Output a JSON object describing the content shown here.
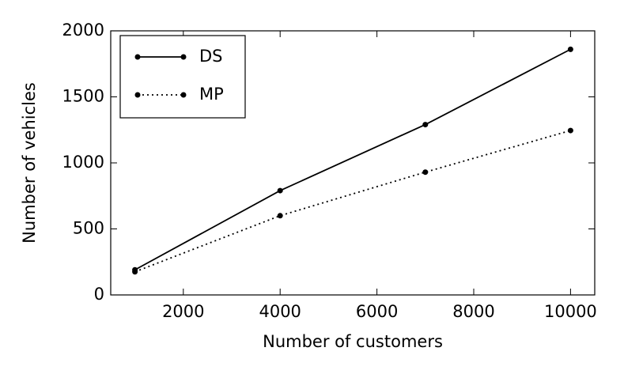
{
  "chart_data": {
    "type": "line",
    "x_label": "Number of customers",
    "y_label": "Number of vehicles",
    "x": [
      1000,
      4000,
      7000,
      10000
    ],
    "series": [
      {
        "name": "DS",
        "color": "#000000",
        "line_style": "solid",
        "values": [
          190,
          790,
          1290,
          1860
        ]
      },
      {
        "name": "MP",
        "color": "#000000",
        "line_style": "dotted",
        "values": [
          175,
          600,
          930,
          1245
        ]
      }
    ],
    "xlim": [
      500,
      10500
    ],
    "xticks": [
      2000,
      4000,
      6000,
      8000,
      10000
    ],
    "ylim": [
      0,
      2000
    ],
    "yticks": [
      0,
      500,
      1000,
      1500,
      2000
    ],
    "legend": "upper left",
    "grid": false
  }
}
